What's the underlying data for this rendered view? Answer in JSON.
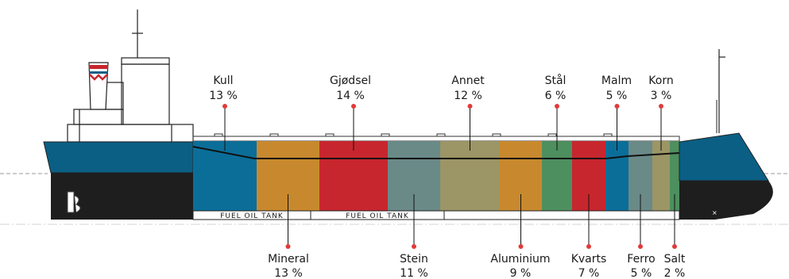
{
  "diagram": {
    "cargo": [
      {
        "name": "Kull",
        "pct": "13 %",
        "color": "#0b6e99"
      },
      {
        "name": "Mineral",
        "pct": "13 %",
        "color": "#c8892e"
      },
      {
        "name": "Gjødsel",
        "pct": "14 %",
        "color": "#c8262e"
      },
      {
        "name": "Stein",
        "pct": "11 %",
        "color": "#6a8a88"
      },
      {
        "name": "Annet",
        "pct": "12 %",
        "color": "#9c9565"
      },
      {
        "name": "Aluminium",
        "pct": "9 %",
        "color": "#c8892e"
      },
      {
        "name": "Stål",
        "pct": "6 %",
        "color": "#4d8f5e"
      },
      {
        "name": "Kvarts",
        "pct": "7 %",
        "color": "#c8262e"
      },
      {
        "name": "Malm",
        "pct": "5 %",
        "color": "#0b6e99"
      },
      {
        "name": "Ferro",
        "pct": "5 %",
        "color": "#6a8a88"
      },
      {
        "name": "Korn",
        "pct": "3 %",
        "color": "#9c9565"
      },
      {
        "name": "Salt",
        "pct": "2 %",
        "color": "#4d8f5e"
      }
    ],
    "tanks": [
      {
        "label": "FUEL OIL TANK"
      },
      {
        "label": "FUEL OIL TANK"
      }
    ],
    "colors": {
      "hull_blue": "#0b5f84",
      "hull_dark": "#1e1e1e",
      "marker": "#e23a3a"
    }
  }
}
